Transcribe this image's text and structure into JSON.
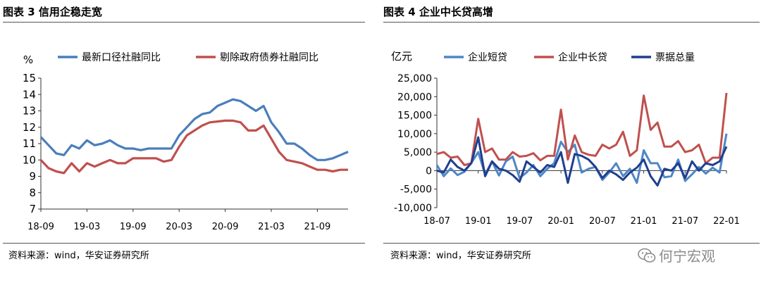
{
  "charts": [
    {
      "title": "图表 3  信用企稳走宽",
      "source": "资料来源：wind，华安证券研究所"
    },
    {
      "title": "图表 4  企业中长贷高增",
      "source": "资料来源：wind，华安证券研究所"
    }
  ],
  "watermark": {
    "text": "何宁宏观",
    "icon": "wechat-icon"
  },
  "chart_data": [
    {
      "type": "line",
      "title": "信用企稳走宽",
      "ylabel": "%",
      "ylim": [
        7,
        15
      ],
      "yticks": [
        7,
        8,
        9,
        10,
        11,
        12,
        13,
        14,
        15
      ],
      "x": [
        "18-09",
        "18-10",
        "18-11",
        "18-12",
        "19-01",
        "19-02",
        "19-03",
        "19-04",
        "19-05",
        "19-06",
        "19-07",
        "19-08",
        "19-09",
        "19-10",
        "19-11",
        "19-12",
        "20-01",
        "20-02",
        "20-03",
        "20-04",
        "20-05",
        "20-06",
        "20-07",
        "20-08",
        "20-09",
        "20-10",
        "20-11",
        "20-12",
        "21-01",
        "21-02",
        "21-03",
        "21-04",
        "21-05",
        "21-06",
        "21-07",
        "21-08",
        "21-09",
        "21-10",
        "21-11",
        "21-12",
        "22-01"
      ],
      "xticks": [
        "18-09",
        "19-03",
        "19-09",
        "20-03",
        "20-09",
        "21-03",
        "21-09"
      ],
      "series": [
        {
          "name": "最新口径社融同比",
          "color": "#4a7ebb",
          "values": [
            11.4,
            10.9,
            10.4,
            10.3,
            10.9,
            10.7,
            11.2,
            10.9,
            11.0,
            11.2,
            10.9,
            10.7,
            10.7,
            10.6,
            10.7,
            10.7,
            10.7,
            10.7,
            11.5,
            12.0,
            12.5,
            12.8,
            12.9,
            13.3,
            13.5,
            13.7,
            13.6,
            13.3,
            13.0,
            13.3,
            12.3,
            11.7,
            11.0,
            11.0,
            10.7,
            10.3,
            10.0,
            10.0,
            10.1,
            10.3,
            10.5
          ]
        },
        {
          "name": "剔除政府债券社融同比",
          "color": "#c0504d",
          "values": [
            10.0,
            9.5,
            9.3,
            9.2,
            9.8,
            9.3,
            9.8,
            9.6,
            9.8,
            10.0,
            9.8,
            9.8,
            10.1,
            10.1,
            10.1,
            10.1,
            9.9,
            10.0,
            10.8,
            11.5,
            11.8,
            12.1,
            12.3,
            12.35,
            12.4,
            12.4,
            12.3,
            11.8,
            11.8,
            12.1,
            11.3,
            10.5,
            10.0,
            9.9,
            9.8,
            9.6,
            9.4,
            9.4,
            9.3,
            9.4,
            9.4
          ]
        }
      ]
    },
    {
      "type": "line",
      "title": "企业中长贷高增",
      "ylabel": "亿元",
      "ylim": [
        -10000,
        25000
      ],
      "yticks": [
        -10000,
        -5000,
        0,
        5000,
        10000,
        15000,
        20000,
        25000
      ],
      "ytick_labels": [
        "-10,000",
        "-5,000",
        "0",
        "5,000",
        "10,000",
        "15,000",
        "20,000",
        "25,000"
      ],
      "x": [
        "18-07",
        "18-08",
        "18-09",
        "18-10",
        "18-11",
        "18-12",
        "19-01",
        "19-02",
        "19-03",
        "19-04",
        "19-05",
        "19-06",
        "19-07",
        "19-08",
        "19-09",
        "19-10",
        "19-11",
        "19-12",
        "20-01",
        "20-02",
        "20-03",
        "20-04",
        "20-05",
        "20-06",
        "20-07",
        "20-08",
        "20-09",
        "20-10",
        "20-11",
        "20-12",
        "21-01",
        "21-02",
        "21-03",
        "21-04",
        "21-05",
        "21-06",
        "21-07",
        "21-08",
        "21-09",
        "21-10",
        "21-11",
        "21-12",
        "22-01"
      ],
      "xticks": [
        "18-07",
        "19-01",
        "19-07",
        "20-01",
        "20-07",
        "21-01",
        "21-07",
        "22-01"
      ],
      "series": [
        {
          "name": "企业短贷",
          "color": "#4f86c6",
          "values": [
            1500,
            -1500,
            600,
            -1200,
            -300,
            2100,
            5000,
            -1000,
            2500,
            -1300,
            2500,
            3800,
            -2000,
            -500,
            1500,
            -1500,
            500,
            2000,
            7800,
            5000,
            7000,
            -500,
            500,
            1000,
            -2500,
            -500,
            2000,
            -1500,
            500,
            -3300,
            5500,
            2000,
            2000,
            -1800,
            -1500,
            3000,
            -2800,
            -1000,
            1000,
            -800,
            800,
            -500,
            10000
          ]
        },
        {
          "name": "企业中长贷",
          "color": "#c0504d",
          "values": [
            4500,
            5000,
            3500,
            3800,
            1500,
            2000,
            14000,
            5000,
            6000,
            3000,
            3000,
            5000,
            3800,
            4000,
            4700,
            2800,
            4000,
            4000,
            16500,
            3000,
            9500,
            5000,
            4300,
            4000,
            7000,
            6000,
            7000,
            10500,
            4000,
            5500,
            20300,
            11000,
            13000,
            6500,
            6500,
            8000,
            5000,
            5500,
            7000,
            2000,
            3500,
            3500,
            21000
          ]
        },
        {
          "name": "票据总量",
          "color": "#1f3f8f",
          "values": [
            0,
            -500,
            3000,
            1000,
            0,
            2000,
            9000,
            -1500,
            2500,
            500,
            0,
            -1200,
            -3000,
            2500,
            1000,
            -500,
            1500,
            1000,
            5000,
            -3300,
            4500,
            4000,
            3000,
            1000,
            -2000,
            0,
            -1000,
            -2500,
            -500,
            800,
            3000,
            -1500,
            -4000,
            500,
            0,
            2000,
            -2000,
            2500,
            0,
            2000,
            1500,
            2500,
            6500
          ]
        }
      ]
    }
  ]
}
